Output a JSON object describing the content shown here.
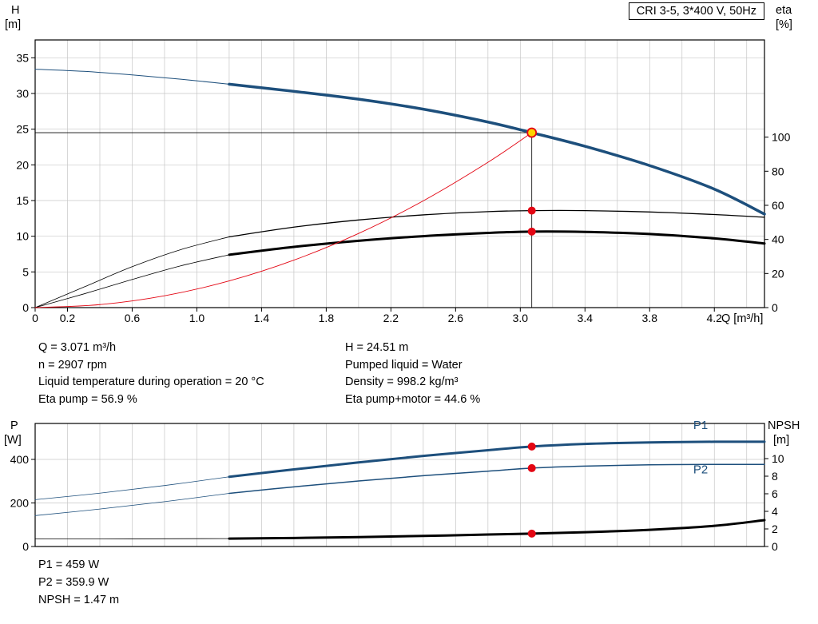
{
  "header": {
    "title": "CRI 3-5, 3*400 V, 50Hz"
  },
  "colors": {
    "curve_blue": "#1d4f7c",
    "curve_black": "#000000",
    "curve_red": "#e30613",
    "marker": "#e30613",
    "duty_fill": "#ffd400",
    "duty_ring": "#e30613",
    "grid": "#c6c6c6",
    "axis": "#000000"
  },
  "top_info": {
    "left": [
      "Q = 3.071 m³/h",
      "n = 2907 rpm",
      "Liquid temperature during operation = 20 °C",
      "Eta pump = 56.9 %"
    ],
    "right": [
      "H = 24.51 m",
      "Pumped liquid = Water",
      "Density = 998.2 kg/m³",
      "Eta pump+motor = 44.6 %"
    ]
  },
  "bottom_info": [
    "P1 = 459 W",
    "P2 = 359.9 W",
    "NPSH = 1.47 m"
  ],
  "chart_data": [
    {
      "type": "line",
      "name": "head-efficiency-chart",
      "title": "CRI 3-5, 3*400 V, 50Hz",
      "grid": true,
      "x_axis": {
        "label": "Q [m³/h]",
        "min": 0,
        "max": 4.51,
        "grid_step": 0.2,
        "tick_vals": [
          0,
          0.2,
          0.6,
          1.0,
          1.4,
          1.8,
          2.2,
          2.6,
          3.0,
          3.4,
          3.8,
          4.2
        ],
        "tick_labels": [
          "0",
          "0.2",
          "0.6",
          "1.0",
          "1.4",
          "1.8",
          "2.2",
          "2.6",
          "3.0",
          "3.4",
          "3.8",
          "4.2"
        ]
      },
      "y_left": {
        "label": "H",
        "unit": "[m]",
        "min": 0,
        "max": 37.5,
        "ticks": [
          0,
          5,
          10,
          15,
          20,
          25,
          30,
          35
        ],
        "tick_labels": [
          "0",
          "5",
          "10",
          "15",
          "20",
          "25",
          "30",
          "35"
        ]
      },
      "y_right": {
        "label": "eta",
        "unit": "[%]",
        "min": 0,
        "max": 157,
        "ticks": [
          0,
          20,
          40,
          60,
          80,
          100
        ],
        "tick_labels": [
          "0",
          "20",
          "40",
          "60",
          "80",
          "100"
        ]
      },
      "duty_point": {
        "Q": 3.071,
        "H": 24.51,
        "eta_pump": 56.9,
        "eta_pump_motor": 44.6
      },
      "series": [
        {
          "name": "pump-curve-lead",
          "axis": "left",
          "color": "curve_blue",
          "width": 1,
          "points": [
            [
              0,
              33.4
            ],
            [
              0.3,
              33.1
            ],
            [
              0.6,
              32.6
            ],
            [
              0.9,
              32.0
            ],
            [
              1.2,
              31.3
            ]
          ]
        },
        {
          "name": "pump-curve",
          "axis": "left",
          "color": "curve_blue",
          "width": 3.5,
          "points": [
            [
              1.2,
              31.3
            ],
            [
              1.6,
              30.3
            ],
            [
              2.0,
              29.2
            ],
            [
              2.4,
              27.8
            ],
            [
              2.8,
              26.0
            ],
            [
              3.071,
              24.51
            ],
            [
              3.4,
              22.6
            ],
            [
              3.8,
              19.9
            ],
            [
              4.2,
              16.6
            ],
            [
              4.51,
              13.1
            ]
          ]
        },
        {
          "name": "eta-pump-lead",
          "axis": "right",
          "color": "curve_black",
          "width": 0.8,
          "points": [
            [
              0,
              0
            ],
            [
              0.3,
              12
            ],
            [
              0.6,
              24
            ],
            [
              0.9,
              34
            ],
            [
              1.2,
              41.5
            ]
          ]
        },
        {
          "name": "eta-pump",
          "axis": "right",
          "color": "curve_black",
          "width": 1.3,
          "points": [
            [
              1.2,
              41.5
            ],
            [
              1.6,
              47.2
            ],
            [
              2.0,
              51.4
            ],
            [
              2.4,
              54.4
            ],
            [
              2.8,
              56.3
            ],
            [
              3.071,
              56.9
            ],
            [
              3.4,
              56.9
            ],
            [
              3.8,
              56.1
            ],
            [
              4.2,
              54.6
            ],
            [
              4.51,
              53.0
            ]
          ]
        },
        {
          "name": "eta-pump-motor-lead",
          "axis": "right",
          "color": "curve_black",
          "width": 0.8,
          "points": [
            [
              0,
              0
            ],
            [
              0.3,
              8
            ],
            [
              0.6,
              16.5
            ],
            [
              0.9,
              24.5
            ],
            [
              1.2,
              31.0
            ]
          ]
        },
        {
          "name": "eta-pump-motor",
          "axis": "right",
          "color": "curve_black",
          "width": 3,
          "points": [
            [
              1.2,
              31.0
            ],
            [
              1.6,
              35.6
            ],
            [
              2.0,
              39.2
            ],
            [
              2.4,
              41.9
            ],
            [
              2.8,
              43.8
            ],
            [
              3.071,
              44.6
            ],
            [
              3.4,
              44.4
            ],
            [
              3.8,
              43.2
            ],
            [
              4.2,
              40.6
            ],
            [
              4.51,
              37.6
            ]
          ]
        },
        {
          "name": "system-curve",
          "axis": "left",
          "color": "curve_red",
          "width": 0.9,
          "points": [
            [
              0,
              0
            ],
            [
              0.4,
              0.42
            ],
            [
              0.8,
              1.66
            ],
            [
              1.2,
              3.74
            ],
            [
              1.6,
              6.65
            ],
            [
              2.0,
              10.39
            ],
            [
              2.4,
              14.96
            ],
            [
              2.8,
              20.36
            ],
            [
              3.071,
              24.51
            ]
          ]
        }
      ],
      "guides": [
        {
          "type": "h",
          "axis": "left",
          "v": 24.51,
          "q1": 0,
          "q2": 3.071
        },
        {
          "type": "v",
          "axis": "left",
          "q": 3.071,
          "v1": 0,
          "v2": 24.51
        }
      ],
      "dots": [
        {
          "q": 3.071,
          "axis": "right",
          "v": 56.9,
          "type": "marker"
        },
        {
          "q": 3.071,
          "axis": "right",
          "v": 44.6,
          "type": "marker"
        },
        {
          "q": 3.071,
          "axis": "left",
          "v": 24.51,
          "type": "duty"
        }
      ],
      "labels": []
    },
    {
      "type": "line",
      "name": "power-npsh-chart",
      "title": "",
      "grid": true,
      "x_axis": {
        "label": "",
        "min": 0,
        "max": 4.51,
        "grid_step": 0.2
      },
      "y_left": {
        "label": "P",
        "unit": "[W]",
        "min": 0,
        "max": 565,
        "ticks": [
          0,
          200,
          400
        ],
        "tick_labels": [
          "0",
          "200",
          "400"
        ]
      },
      "y_right": {
        "label": "NPSH",
        "unit": "[m]",
        "min": 0,
        "max": 14,
        "ticks": [
          0,
          2,
          4,
          6,
          8,
          10
        ],
        "tick_labels": [
          "0",
          "2",
          "4",
          "6",
          "8",
          "10"
        ]
      },
      "duty_point": {
        "Q": 3.071,
        "P1": 459,
        "P2": 359.9,
        "NPSH": 1.47
      },
      "series": [
        {
          "name": "p1-lead",
          "axis": "left",
          "color": "curve_blue",
          "width": 0.8,
          "points": [
            [
              0,
              215
            ],
            [
              0.4,
              245
            ],
            [
              0.8,
              280
            ],
            [
              1.2,
              320
            ]
          ]
        },
        {
          "name": "p1",
          "axis": "left",
          "color": "curve_blue",
          "width": 3,
          "points": [
            [
              1.2,
              320
            ],
            [
              1.6,
              354
            ],
            [
              2.0,
              386
            ],
            [
              2.4,
              416
            ],
            [
              2.8,
              442
            ],
            [
              3.071,
              459
            ],
            [
              3.4,
              471
            ],
            [
              3.8,
              478
            ],
            [
              4.2,
              481
            ],
            [
              4.51,
              481
            ]
          ]
        },
        {
          "name": "p2-lead",
          "axis": "left",
          "color": "curve_blue",
          "width": 0.8,
          "points": [
            [
              0,
              142
            ],
            [
              0.4,
              172
            ],
            [
              0.8,
              206
            ],
            [
              1.2,
              244
            ]
          ]
        },
        {
          "name": "p2",
          "axis": "left",
          "color": "curve_blue",
          "width": 1.5,
          "points": [
            [
              1.2,
              244
            ],
            [
              1.6,
              274
            ],
            [
              2.0,
              301
            ],
            [
              2.4,
              325
            ],
            [
              2.8,
              346
            ],
            [
              3.071,
              359.9
            ],
            [
              3.4,
              369
            ],
            [
              3.8,
              375
            ],
            [
              4.2,
              377
            ],
            [
              4.51,
              377
            ]
          ]
        },
        {
          "name": "npsh-lead",
          "axis": "right",
          "color": "curve_black",
          "width": 0.8,
          "points": [
            [
              0,
              0.85
            ],
            [
              0.6,
              0.87
            ],
            [
              1.2,
              0.9
            ]
          ]
        },
        {
          "name": "npsh",
          "axis": "right",
          "color": "curve_black",
          "width": 3,
          "points": [
            [
              1.2,
              0.9
            ],
            [
              1.6,
              0.97
            ],
            [
              2.0,
              1.07
            ],
            [
              2.4,
              1.2
            ],
            [
              2.8,
              1.36
            ],
            [
              3.071,
              1.47
            ],
            [
              3.4,
              1.62
            ],
            [
              3.8,
              1.9
            ],
            [
              4.2,
              2.35
            ],
            [
              4.51,
              3.0
            ]
          ]
        }
      ],
      "guides": [],
      "dots": [
        {
          "q": 3.071,
          "axis": "left",
          "v": 459,
          "type": "marker"
        },
        {
          "q": 3.071,
          "axis": "left",
          "v": 359.9,
          "type": "marker"
        },
        {
          "q": 3.071,
          "axis": "right",
          "v": 1.47,
          "type": "marker"
        }
      ],
      "labels": [
        {
          "text": "P1",
          "q": 4.07,
          "axis": "left",
          "v": 540
        },
        {
          "text": "P2",
          "q": 4.07,
          "axis": "left",
          "v": 336
        }
      ]
    }
  ]
}
